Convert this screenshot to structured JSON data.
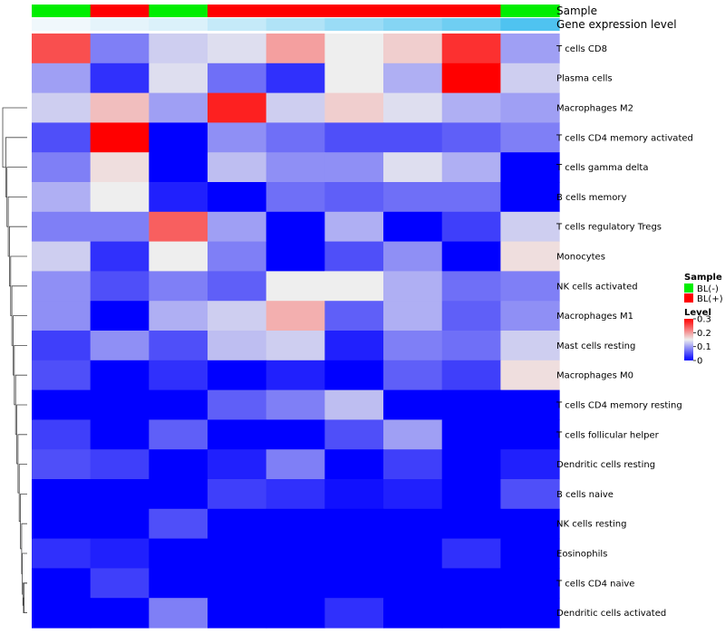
{
  "chart_data": {
    "type": "heatmap",
    "annotation_tracks": [
      {
        "label": "Sample",
        "values": [
          "BL(-)",
          "BL(+)",
          "BL(-)",
          "BL(+)",
          "BL(+)",
          "BL(+)",
          "BL(+)",
          "BL(+)",
          "BL(-)"
        ]
      },
      {
        "label": "Gene expression level",
        "values": [
          0.01,
          0.02,
          0.03,
          0.05,
          0.07,
          0.09,
          0.11,
          0.13,
          0.16
        ]
      }
    ],
    "rows": [
      "T cells CD8",
      "Plasma cells",
      "Macrophages M2",
      "T cells CD4 memory activated",
      "T cells gamma delta",
      "B cells memory",
      "T cells regulatory  Tregs",
      "Monocytes",
      "NK cells activated",
      "Macrophages M1",
      "Mast cells resting",
      "Macrophages M0",
      "T cells CD4 memory resting",
      "T cells follicular helper",
      "Dendritic cells resting",
      "B cells naive",
      "NK cells resting",
      "Eosinophils",
      "T cells CD4 naive",
      "Dendritic cells activated"
    ],
    "values": [
      [
        0.25,
        0.08,
        0.13,
        0.14,
        0.2,
        0.15,
        0.17,
        0.27,
        0.1
      ],
      [
        0.1,
        0.03,
        0.14,
        0.07,
        0.03,
        0.15,
        0.11,
        0.3,
        0.13
      ],
      [
        0.13,
        0.18,
        0.1,
        0.28,
        0.13,
        0.17,
        0.14,
        0.11,
        0.1
      ],
      [
        0.05,
        0.3,
        0.0,
        0.09,
        0.07,
        0.05,
        0.05,
        0.06,
        0.08
      ],
      [
        0.08,
        0.16,
        0.0,
        0.12,
        0.09,
        0.09,
        0.14,
        0.11,
        0.0
      ],
      [
        0.11,
        0.15,
        0.02,
        0.0,
        0.07,
        0.06,
        0.07,
        0.07,
        0.0
      ],
      [
        0.08,
        0.08,
        0.24,
        0.1,
        0.0,
        0.11,
        0.0,
        0.04,
        0.13
      ],
      [
        0.13,
        0.03,
        0.15,
        0.08,
        0.0,
        0.05,
        0.09,
        0.0,
        0.16
      ],
      [
        0.09,
        0.05,
        0.08,
        0.06,
        0.15,
        0.15,
        0.11,
        0.07,
        0.08
      ],
      [
        0.09,
        0.0,
        0.11,
        0.13,
        0.19,
        0.06,
        0.11,
        0.06,
        0.09
      ],
      [
        0.04,
        0.09,
        0.05,
        0.12,
        0.13,
        0.02,
        0.08,
        0.07,
        0.13
      ],
      [
        0.05,
        0.0,
        0.03,
        0.0,
        0.02,
        0.0,
        0.06,
        0.04,
        0.16
      ],
      [
        0.0,
        0.0,
        0.0,
        0.06,
        0.08,
        0.12,
        0.0,
        0.0,
        0.0
      ],
      [
        0.04,
        0.0,
        0.06,
        0.0,
        0.0,
        0.05,
        0.1,
        0.0,
        0.0
      ],
      [
        0.05,
        0.04,
        0.0,
        0.02,
        0.08,
        0.0,
        0.04,
        0.0,
        0.02
      ],
      [
        0.0,
        0.0,
        0.0,
        0.04,
        0.03,
        0.01,
        0.02,
        0.0,
        0.05
      ],
      [
        0.0,
        0.0,
        0.05,
        0.0,
        0.0,
        0.0,
        0.0,
        0.0,
        0.0
      ],
      [
        0.03,
        0.02,
        0.0,
        0.0,
        0.0,
        0.0,
        0.0,
        0.03,
        0.0
      ],
      [
        0.0,
        0.04,
        0.0,
        0.0,
        0.0,
        0.0,
        0.0,
        0.0,
        0.0
      ],
      [
        0.0,
        0.0,
        0.08,
        0.0,
        0.0,
        0.03,
        0.0,
        0.0,
        0.0
      ]
    ],
    "color_scale": {
      "min": 0,
      "max": 0.3,
      "low_color": "#0000ff",
      "mid_color": "#eeeeee",
      "high_color": "#ff0000",
      "mid_value": 0.15
    },
    "annotation_scale": {
      "min": 0.01,
      "max": 0.16,
      "low_color": "#f0f8fc",
      "high_color": "#4fc3f0"
    },
    "legend": {
      "placement": "right",
      "sample_title": "Sample",
      "sample_entries": [
        {
          "label": "BL(-)",
          "color": "#00ee00"
        },
        {
          "label": "BL(+)",
          "color": "#ff0000"
        }
      ],
      "level_title": "Level",
      "level_ticks": [
        {
          "value": 0.3,
          "label": "0.3"
        },
        {
          "value": 0.2,
          "label": "0.2"
        },
        {
          "value": 0.1,
          "label": "0.1"
        },
        {
          "value": 0,
          "label": "0"
        }
      ]
    },
    "row_dendrogram": {
      "merges": [
        [
          1,
          2,
          0.1
        ],
        [
          -20,
          1,
          0.12
        ],
        [
          -19,
          2,
          0.14
        ],
        [
          -18,
          3,
          0.16
        ],
        [
          -17,
          4,
          0.18
        ],
        [
          -16,
          5,
          0.22
        ],
        [
          -15,
          6,
          0.26
        ],
        [
          -14,
          7,
          0.3
        ],
        [
          -13,
          8,
          0.34
        ],
        [
          -12,
          9,
          0.38
        ],
        [
          -11,
          10,
          0.42
        ],
        [
          -10,
          11,
          0.46
        ],
        [
          -9,
          12,
          0.5
        ],
        [
          -8,
          13,
          0.54
        ],
        [
          -7,
          14,
          0.58
        ],
        [
          -6,
          15,
          0.62
        ],
        [
          -5,
          16,
          0.66
        ],
        [
          -4,
          17,
          0.7
        ],
        [
          -3,
          18,
          0.8
        ]
      ]
    }
  }
}
